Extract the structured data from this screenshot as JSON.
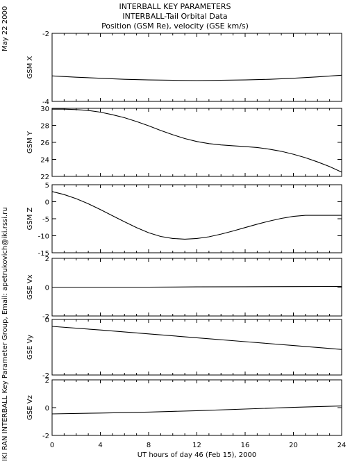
{
  "header": {
    "line1": "INTERBALL KEY PARAMETERS",
    "line2": "INTERBALL-Tail Orbital Data",
    "line3": "Position (GSM Re), velocity (GSE km/s)"
  },
  "side": {
    "date": "May 22 2000",
    "credit": "IKI RAN INTERBALL Key Parameter Group, Email: apetrukovich@iki.rssi.ru"
  },
  "chart_data": {
    "type": "line",
    "x": {
      "label": "UT hours of day  46 (Feb 15), 2000",
      "range": [
        0,
        24
      ],
      "ticks": [
        "0",
        "4",
        "8",
        "12",
        "16",
        "20",
        "24"
      ]
    },
    "panels": [
      {
        "name": "GSM X",
        "ylim": [
          -4,
          -2
        ],
        "yticks": [
          "-2",
          "-4"
        ],
        "series": {
          "x": [
            0,
            2,
            4,
            6,
            8,
            10,
            12,
            14,
            16,
            18,
            20,
            22,
            24
          ],
          "y": [
            -3.25,
            -3.29,
            -3.32,
            -3.35,
            -3.37,
            -3.38,
            -3.39,
            -3.38,
            -3.37,
            -3.35,
            -3.32,
            -3.28,
            -3.23
          ]
        }
      },
      {
        "name": "GSM Y",
        "ylim": [
          22,
          30
        ],
        "yticks": [
          "30",
          "28",
          "26",
          "24",
          "22"
        ],
        "series": {
          "x": [
            0,
            1,
            2,
            3,
            4,
            5,
            6,
            7,
            8,
            9,
            10,
            11,
            12,
            13,
            14,
            15,
            16,
            17,
            18,
            19,
            20,
            21,
            22,
            23,
            24
          ],
          "y": [
            29.9,
            29.9,
            29.85,
            29.75,
            29.55,
            29.25,
            28.9,
            28.45,
            27.95,
            27.4,
            26.9,
            26.45,
            26.1,
            25.85,
            25.7,
            25.6,
            25.5,
            25.4,
            25.2,
            24.95,
            24.6,
            24.2,
            23.7,
            23.15,
            22.5
          ]
        }
      },
      {
        "name": "GSM Z",
        "ylim": [
          -15,
          5
        ],
        "yticks": [
          "5",
          "0",
          "-5",
          "-10",
          "-15"
        ],
        "series": {
          "x": [
            0,
            1,
            2,
            3,
            4,
            5,
            6,
            7,
            8,
            9,
            10,
            11,
            12,
            13,
            14,
            15,
            16,
            17,
            18,
            19,
            20,
            21,
            22,
            23,
            24
          ],
          "y": [
            3,
            2.1,
            0.9,
            -0.6,
            -2.3,
            -4.1,
            -5.9,
            -7.6,
            -9.1,
            -10.2,
            -10.8,
            -11,
            -10.8,
            -10.3,
            -9.5,
            -8.6,
            -7.6,
            -6.6,
            -5.7,
            -4.9,
            -4.3,
            -4,
            -4,
            -4,
            -4
          ]
        }
      },
      {
        "name": "GSE Vx",
        "ylim": [
          -2,
          2
        ],
        "yticks": [
          "2",
          "0",
          "-2"
        ],
        "series": {
          "x": [
            0,
            4,
            8,
            12,
            16,
            20,
            24
          ],
          "y": [
            0,
            0,
            0,
            0.02,
            0.03,
            0.04,
            0.05
          ]
        }
      },
      {
        "name": "GSE Vy",
        "ylim": [
          -2,
          0
        ],
        "yticks": [
          "0",
          "-2"
        ],
        "series": {
          "x": [
            0,
            4,
            8,
            12,
            16,
            20,
            24
          ],
          "y": [
            -0.25,
            -0.38,
            -0.52,
            -0.66,
            -0.8,
            -0.94,
            -1.08
          ]
        }
      },
      {
        "name": "GSE Vz",
        "ylim": [
          -2,
          2
        ],
        "yticks": [
          "2",
          "0",
          "-2"
        ],
        "series": {
          "x": [
            0,
            4,
            8,
            12,
            16,
            20,
            24
          ],
          "y": [
            -0.45,
            -0.39,
            -0.32,
            -0.22,
            -0.1,
            0.02,
            0.12
          ]
        }
      }
    ]
  }
}
